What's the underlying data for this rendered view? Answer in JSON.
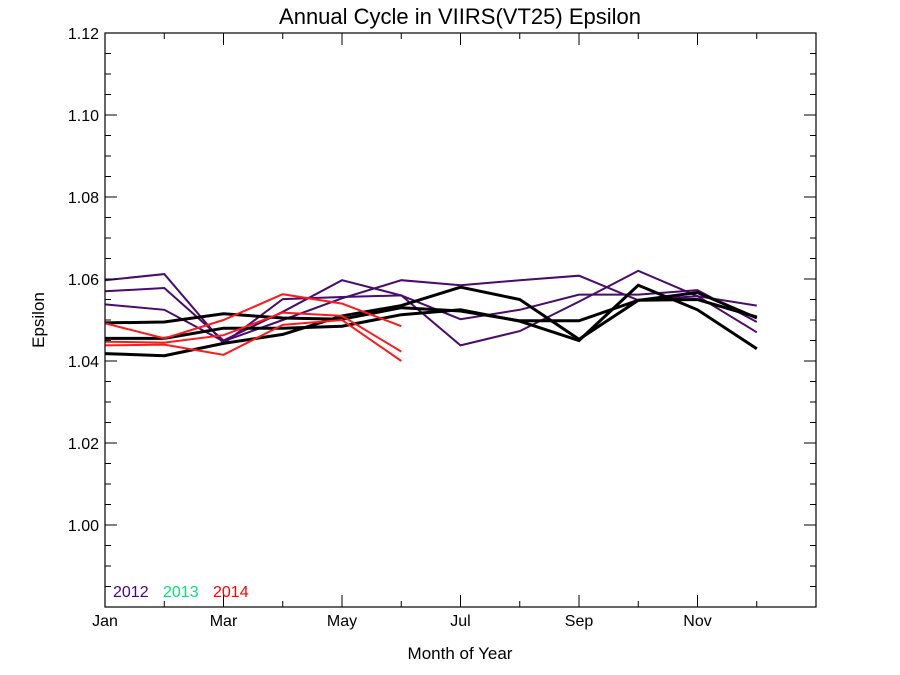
{
  "chart_data": {
    "type": "line",
    "title": "Annual Cycle in VIIRS(VT25) Epsilon",
    "xlabel": "Month of Year",
    "ylabel": "Epsilon",
    "xlim": [
      1,
      13
    ],
    "ylim": [
      0.98,
      1.12
    ],
    "x_ticks": [
      {
        "value": 1,
        "label": "Jan"
      },
      {
        "value": 3,
        "label": "Mar"
      },
      {
        "value": 5,
        "label": "May"
      },
      {
        "value": 7,
        "label": "Jul"
      },
      {
        "value": 9,
        "label": "Sep"
      },
      {
        "value": 11,
        "label": "Nov"
      }
    ],
    "y_ticks": [
      {
        "value": 1.0,
        "label": "1.00"
      },
      {
        "value": 1.02,
        "label": "1.02"
      },
      {
        "value": 1.04,
        "label": "1.04"
      },
      {
        "value": 1.06,
        "label": "1.06"
      },
      {
        "value": 1.08,
        "label": "1.08"
      },
      {
        "value": 1.1,
        "label": "1.10"
      },
      {
        "value": 1.12,
        "label": "1.12"
      }
    ],
    "grid": false,
    "legend": {
      "placement": "bottom-left",
      "entries": [
        {
          "label": "2012",
          "color": "#4b0082"
        },
        {
          "label": "2013",
          "color": "#00e676"
        },
        {
          "label": "2014",
          "color": "#ff0000"
        }
      ]
    },
    "series": [
      {
        "color": "#4b0a6e",
        "width": 2,
        "x": [
          1,
          2,
          3,
          4,
          5,
          6,
          7,
          8,
          9,
          10,
          11,
          12
        ],
        "y": [
          1.0597,
          1.0612,
          1.0443,
          1.0551,
          1.0556,
          1.056,
          1.0438,
          1.0473,
          1.0545,
          1.062,
          1.0558,
          1.0535
        ]
      },
      {
        "color": "#4b0a6e",
        "width": 2,
        "x": [
          1,
          2,
          3,
          4,
          5,
          6,
          7,
          8,
          9,
          10,
          11,
          12
        ],
        "y": [
          1.057,
          1.0578,
          1.045,
          1.052,
          1.0597,
          1.056,
          1.0502,
          1.0525,
          1.0562,
          1.0562,
          1.0573,
          1.0495
        ]
      },
      {
        "color": "#4b0a6e",
        "width": 2,
        "x": [
          1,
          2,
          3,
          4,
          5,
          6,
          7,
          8,
          9,
          10,
          11,
          12
        ],
        "y": [
          1.0538,
          1.0525,
          1.0448,
          1.05,
          1.0553,
          1.0597,
          1.0585,
          1.0597,
          1.0608,
          1.0548,
          1.0558,
          1.047
        ]
      },
      {
        "color": "#000000",
        "width": 3,
        "x": [
          1,
          2,
          3,
          4,
          5,
          6,
          7,
          8,
          9,
          10,
          11,
          12
        ],
        "y": [
          1.0493,
          1.0495,
          1.0515,
          1.0505,
          1.0502,
          1.053,
          1.0522,
          1.0498,
          1.0498,
          1.0548,
          1.0567,
          1.0505
        ]
      },
      {
        "color": "#000000",
        "width": 3,
        "x": [
          1,
          2,
          3,
          4,
          5,
          6,
          7,
          8,
          9,
          10,
          11,
          12
        ],
        "y": [
          1.0455,
          1.0455,
          1.048,
          1.048,
          1.0485,
          1.0513,
          1.0525,
          1.0497,
          1.045,
          1.0585,
          1.0525,
          1.043
        ]
      },
      {
        "color": "#000000",
        "width": 3,
        "x": [
          1,
          2,
          3,
          4,
          5,
          6,
          7,
          8,
          9,
          10,
          11,
          12
        ],
        "y": [
          1.0418,
          1.0413,
          1.0443,
          1.0465,
          1.051,
          1.0535,
          1.058,
          1.055,
          1.0453,
          1.0548,
          1.055,
          1.0507
        ]
      },
      {
        "color": "#ff1a1a",
        "width": 2,
        "x": [
          1,
          2,
          3,
          4,
          5,
          6
        ],
        "y": [
          1.0492,
          1.0455,
          1.05,
          1.0563,
          1.054,
          1.0485
        ]
      },
      {
        "color": "#ff1a1a",
        "width": 2,
        "x": [
          1,
          2,
          3,
          4,
          5,
          6
        ],
        "y": [
          1.0438,
          1.044,
          1.0415,
          1.0488,
          1.05,
          1.04
        ]
      },
      {
        "color": "#ff1a1a",
        "width": 2,
        "x": [
          1,
          2,
          3,
          4,
          5,
          6
        ],
        "y": [
          1.0447,
          1.0445,
          1.0463,
          1.0518,
          1.051,
          1.0423
        ]
      }
    ]
  }
}
